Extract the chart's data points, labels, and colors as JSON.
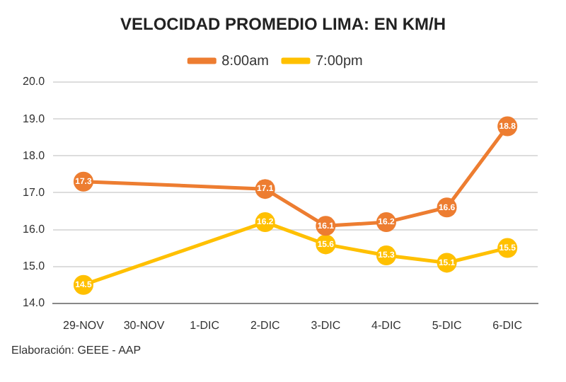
{
  "chart_data": {
    "type": "line",
    "title": "VELOCIDAD PROMEDIO LIMA: EN KM/H",
    "categories": [
      "29-NOV",
      "30-NOV",
      "1-DIC",
      "2-DIC",
      "3-DIC",
      "4-DIC",
      "5-DIC",
      "6-DIC"
    ],
    "series": [
      {
        "name": "8:00am",
        "color": "#ed7d31",
        "values": [
          17.3,
          null,
          null,
          17.1,
          16.1,
          16.2,
          16.6,
          18.8
        ]
      },
      {
        "name": "7:00pm",
        "color": "#ffc000",
        "values": [
          14.5,
          null,
          null,
          16.2,
          15.6,
          15.3,
          15.1,
          15.5
        ]
      }
    ],
    "ylim": [
      14,
      20
    ],
    "yticks": [
      {
        "value": 14,
        "label": "14.0"
      },
      {
        "value": 15,
        "label": "15.0"
      },
      {
        "value": 16,
        "label": "16.0"
      },
      {
        "value": 17,
        "label": "17.0"
      },
      {
        "value": 18,
        "label": "18.0"
      },
      {
        "value": 19,
        "label": "19.0"
      },
      {
        "value": 20,
        "label": "20.0"
      }
    ],
    "grid": "y",
    "legend": "top",
    "marker": "circle",
    "data_labels": true,
    "annotations": [
      "Elaboración: GEEE - AAP"
    ]
  }
}
